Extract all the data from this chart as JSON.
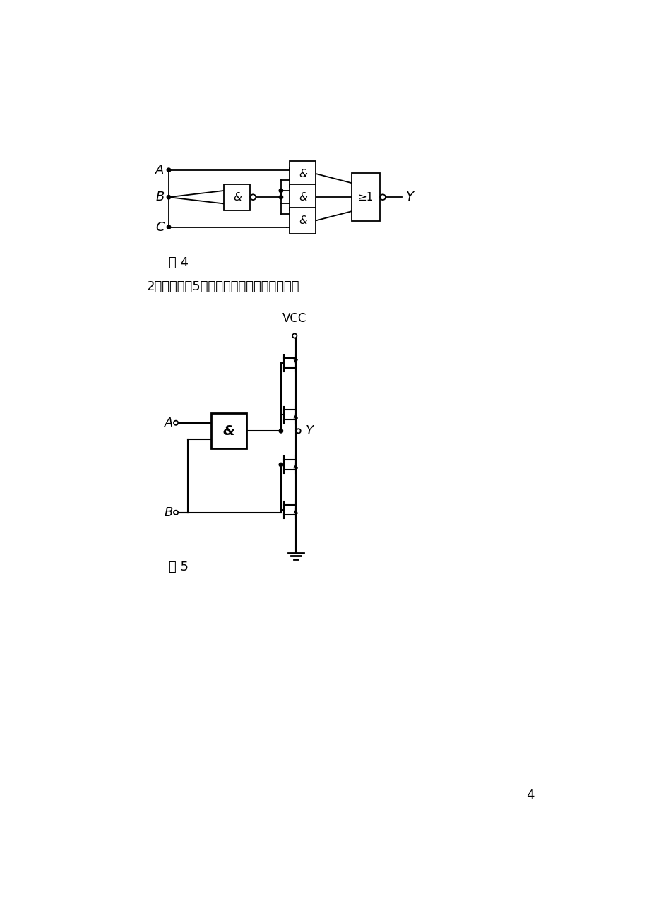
{
  "bg_color": "#ffffff",
  "text_color": "#000000",
  "fig4_label": "图 4",
  "fig5_label": "图 5",
  "question_text": "2、写出如图5所示电路的最简逻辑表达式。",
  "page_number": "4",
  "A_label": "A",
  "B_label": "B",
  "C_label": "C",
  "Y_label": "Y",
  "VCC_label": "VCC"
}
